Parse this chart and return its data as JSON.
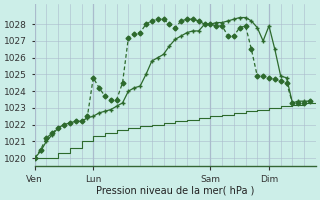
{
  "bg_color": "#cceee8",
  "grid_color": "#aabbcc",
  "line_color": "#2d6a2d",
  "marker_color": "#2d6a2d",
  "xlabel": "Pression niveau de la mer( hPa )",
  "ylim": [
    1019.5,
    1029.2
  ],
  "yticks": [
    1020,
    1021,
    1022,
    1023,
    1024,
    1025,
    1026,
    1027,
    1028
  ],
  "xtick_labels": [
    "Ven",
    "Lun",
    "Sam",
    "Dim"
  ],
  "xtick_positions": [
    0,
    30,
    90,
    120
  ],
  "total_hours": 144,
  "series1_dotted": {
    "x": [
      0,
      3,
      6,
      9,
      12,
      15,
      18,
      21,
      24,
      27,
      30,
      33,
      36,
      39,
      42,
      45,
      48,
      51,
      54,
      57,
      60,
      63,
      66,
      69,
      72,
      75,
      78,
      81,
      84,
      87,
      90,
      93,
      96,
      99,
      102,
      105,
      108,
      111,
      114,
      117,
      120,
      123,
      126,
      129,
      132,
      135,
      138,
      141
    ],
    "y": [
      1020.0,
      1020.5,
      1021.2,
      1021.5,
      1021.8,
      1022.0,
      1022.1,
      1022.2,
      1022.2,
      1022.5,
      1024.8,
      1024.2,
      1023.7,
      1023.5,
      1023.5,
      1024.5,
      1027.2,
      1027.4,
      1027.5,
      1028.0,
      1028.2,
      1028.3,
      1028.3,
      1028.0,
      1027.8,
      1028.2,
      1028.3,
      1028.3,
      1028.2,
      1028.0,
      1028.0,
      1027.9,
      1027.9,
      1027.3,
      1027.3,
      1027.8,
      1027.9,
      1026.5,
      1024.9,
      1024.9,
      1024.8,
      1024.7,
      1024.6,
      1024.5,
      1023.3,
      1023.3,
      1023.3,
      1023.4
    ],
    "marker": "D",
    "markersize": 2.5,
    "linewidth": 0.9
  },
  "series2_cross": {
    "x": [
      0,
      3,
      6,
      9,
      12,
      15,
      18,
      21,
      24,
      27,
      30,
      33,
      36,
      39,
      42,
      45,
      48,
      51,
      54,
      57,
      60,
      63,
      66,
      69,
      72,
      75,
      78,
      81,
      84,
      87,
      90,
      93,
      96,
      99,
      102,
      105,
      108,
      111,
      114,
      117,
      120,
      123,
      126,
      129,
      132,
      135,
      138,
      141
    ],
    "y": [
      1020.0,
      1020.4,
      1021.0,
      1021.4,
      1021.8,
      1022.0,
      1022.1,
      1022.2,
      1022.2,
      1022.4,
      1022.5,
      1022.7,
      1022.8,
      1022.9,
      1023.1,
      1023.3,
      1024.0,
      1024.2,
      1024.3,
      1025.0,
      1025.8,
      1026.0,
      1026.2,
      1026.7,
      1027.1,
      1027.3,
      1027.5,
      1027.6,
      1027.6,
      1028.0,
      1028.0,
      1028.1,
      1028.1,
      1028.2,
      1028.3,
      1028.4,
      1028.4,
      1028.2,
      1027.8,
      1027.0,
      1027.9,
      1026.5,
      1024.9,
      1024.8,
      1023.3,
      1023.4,
      1023.4,
      1023.4
    ],
    "marker": "P",
    "markersize": 3.0,
    "linewidth": 0.9
  },
  "series3_step": {
    "x": [
      0,
      6,
      12,
      18,
      24,
      30,
      36,
      42,
      48,
      54,
      60,
      66,
      72,
      78,
      84,
      90,
      96,
      102,
      108,
      114,
      120,
      126,
      132,
      138,
      144
    ],
    "y": [
      1020.0,
      1020.0,
      1020.3,
      1020.6,
      1021.0,
      1021.3,
      1021.5,
      1021.7,
      1021.8,
      1021.9,
      1022.0,
      1022.1,
      1022.2,
      1022.3,
      1022.4,
      1022.5,
      1022.6,
      1022.7,
      1022.8,
      1022.9,
      1023.0,
      1023.1,
      1023.2,
      1023.3,
      1023.3
    ],
    "linewidth": 0.8
  }
}
